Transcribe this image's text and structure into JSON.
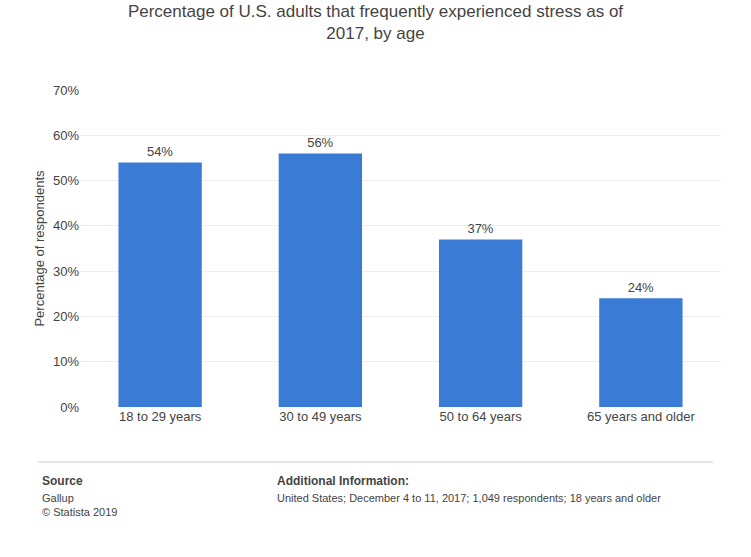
{
  "chart_data": {
    "type": "bar",
    "title": "Percentage of U.S. adults that frequently experienced stress as of\n2017, by age",
    "categories": [
      "18 to 29 years",
      "30 to 49 years",
      "50 to 64 years",
      "65 years and older"
    ],
    "values": [
      54,
      56,
      37,
      24
    ],
    "value_labels": [
      "54%",
      "56%",
      "37%",
      "24%"
    ],
    "data_labels": true,
    "color": "#3a7bd5",
    "ylabel": "Percentage of respondents",
    "ylim": [
      0,
      70
    ],
    "yticks": [
      {
        "value": 0,
        "label": "0%"
      },
      {
        "value": 10,
        "label": "10%"
      },
      {
        "value": 20,
        "label": "20%"
      },
      {
        "value": 30,
        "label": "30%"
      },
      {
        "value": 40,
        "label": "40%"
      },
      {
        "value": 50,
        "label": "50%"
      },
      {
        "value": 60,
        "label": "60%"
      },
      {
        "value": 70,
        "label": "70%"
      }
    ],
    "grid": true,
    "annotations": [
      "Source",
      "Gallup\n© Statista 2019",
      "Additional Information:",
      "United States; December 4 to 11, 2017; 1,049 respondents; 18 years and older"
    ]
  }
}
